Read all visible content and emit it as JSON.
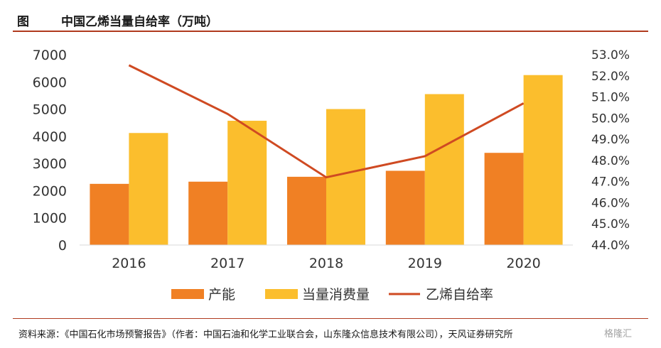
{
  "header": {
    "label": "图",
    "title": "中国乙烯当量自给率（万吨）"
  },
  "chart_data": {
    "type": "bar",
    "categories": [
      "2016",
      "2017",
      "2018",
      "2019",
      "2020"
    ],
    "series": [
      {
        "name": "产能",
        "type": "bar",
        "axis": "left",
        "color": "#f08024",
        "values": [
          2250,
          2330,
          2510,
          2730,
          3390
        ]
      },
      {
        "name": "当量消费量",
        "type": "bar",
        "axis": "left",
        "color": "#fbbe2d",
        "values": [
          4120,
          4570,
          5000,
          5550,
          6250
        ]
      },
      {
        "name": "乙烯自给率",
        "type": "line",
        "axis": "right",
        "color": "#cf4a22",
        "values": [
          52.5,
          50.2,
          47.2,
          48.2,
          50.7
        ]
      }
    ],
    "y_left": {
      "min": 0,
      "max": 7000,
      "ticks": [
        "0",
        "1000",
        "2000",
        "3000",
        "4000",
        "5000",
        "6000",
        "7000"
      ]
    },
    "y_right": {
      "min": 44.0,
      "max": 53.0,
      "ticks": [
        "44.0%",
        "45.0%",
        "46.0%",
        "47.0%",
        "48.0%",
        "49.0%",
        "50.0%",
        "51.0%",
        "52.0%",
        "53.0%"
      ]
    },
    "grid": false,
    "legend_position": "bottom"
  },
  "source": "资料来源：《中国石化市场预警报告》（作者：中国石油和化学工业联合会，山东隆众信息技术有限公司），天风证券研究所",
  "watermark": "格隆汇"
}
